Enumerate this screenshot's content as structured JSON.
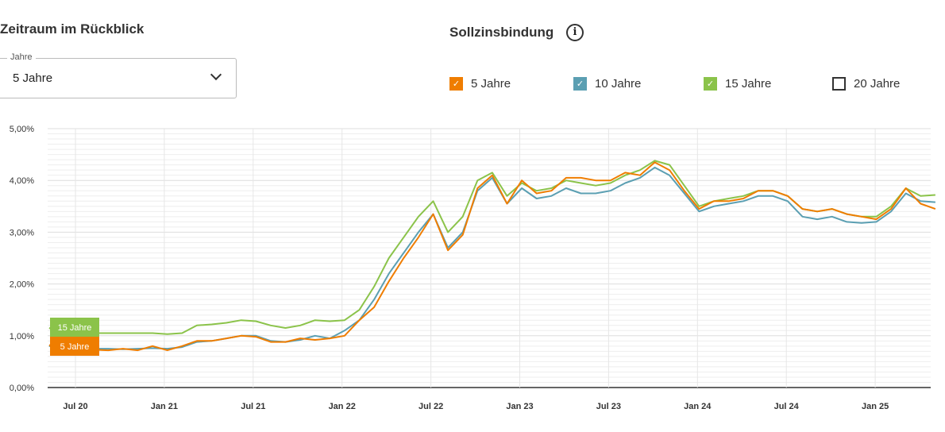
{
  "filter": {
    "title": "Zeitraum im Rückblick",
    "dropdown_label": "Jahre",
    "dropdown_value": "5 Jahre"
  },
  "legend": {
    "title": "Sollzinsbindung",
    "info_icon": "i",
    "items": [
      {
        "label": "5 Jahre",
        "color": "#ef7d00",
        "checked": true
      },
      {
        "label": "10 Jahre",
        "color": "#5b9fb2",
        "checked": true
      },
      {
        "label": "15 Jahre",
        "color": "#8bc34a",
        "checked": true
      },
      {
        "label": "20 Jahre",
        "color": "#333333",
        "checked": false
      }
    ]
  },
  "chart_data": {
    "type": "line",
    "ylim": [
      0,
      5
    ],
    "yticks": [
      "0,00%",
      "1,00%",
      "2,00%",
      "3,00%",
      "4,00%",
      "5,00%"
    ],
    "xticks": [
      "Jul 20",
      "Jan 21",
      "Jul 21",
      "Jan 22",
      "Jul 22",
      "Jan 23",
      "Jul 23",
      "Jan 24",
      "Jul 24",
      "Jan 25"
    ],
    "x_start": "2020-05",
    "x_step": "month",
    "end_labels": [
      "15 Jahre",
      "5 Jahre"
    ],
    "series": [
      {
        "name": "15 Jahre",
        "color": "#8bc34a",
        "values": [
          1.15,
          1.05,
          1.05,
          1.05,
          1.05,
          1.05,
          1.05,
          1.05,
          1.03,
          1.05,
          1.2,
          1.22,
          1.25,
          1.3,
          1.28,
          1.2,
          1.15,
          1.2,
          1.3,
          1.28,
          1.3,
          1.5,
          1.95,
          2.5,
          2.9,
          3.3,
          3.6,
          3.0,
          3.3,
          4.0,
          4.15,
          3.7,
          3.95,
          3.8,
          3.85,
          4.0,
          3.95,
          3.9,
          3.95,
          4.1,
          4.2,
          4.38,
          4.3,
          3.9,
          3.5,
          3.6,
          3.65,
          3.7,
          3.8,
          3.8,
          3.7,
          3.45,
          3.4,
          3.45,
          3.35,
          3.3,
          3.3,
          3.5,
          3.85,
          3.7,
          3.72
        ]
      },
      {
        "name": "10 Jahre",
        "color": "#5b9fb2",
        "values": [
          0.8,
          0.75,
          0.74,
          0.75,
          0.75,
          0.74,
          0.75,
          0.76,
          0.75,
          0.78,
          0.88,
          0.9,
          0.95,
          1.0,
          1.0,
          0.9,
          0.88,
          0.92,
          1.0,
          0.95,
          1.1,
          1.3,
          1.7,
          2.2,
          2.6,
          3.0,
          3.35,
          2.7,
          3.0,
          3.8,
          4.05,
          3.55,
          3.85,
          3.65,
          3.7,
          3.85,
          3.75,
          3.75,
          3.8,
          3.95,
          4.05,
          4.25,
          4.1,
          3.75,
          3.4,
          3.5,
          3.55,
          3.6,
          3.7,
          3.7,
          3.6,
          3.3,
          3.25,
          3.3,
          3.2,
          3.18,
          3.2,
          3.4,
          3.75,
          3.6,
          3.58
        ]
      },
      {
        "name": "5 Jahre",
        "color": "#ef7d00",
        "values": [
          0.82,
          0.72,
          0.7,
          0.73,
          0.72,
          0.75,
          0.72,
          0.8,
          0.72,
          0.8,
          0.9,
          0.9,
          0.95,
          1.0,
          0.98,
          0.88,
          0.88,
          0.95,
          0.92,
          0.95,
          1.0,
          1.3,
          1.55,
          2.05,
          2.5,
          2.9,
          3.35,
          2.65,
          2.95,
          3.85,
          4.1,
          3.55,
          4.0,
          3.75,
          3.8,
          4.05,
          4.05,
          4.0,
          4.0,
          4.15,
          4.1,
          4.35,
          4.2,
          3.8,
          3.45,
          3.6,
          3.6,
          3.65,
          3.8,
          3.8,
          3.7,
          3.45,
          3.4,
          3.45,
          3.35,
          3.3,
          3.25,
          3.45,
          3.85,
          3.55,
          3.45
        ]
      }
    ]
  }
}
